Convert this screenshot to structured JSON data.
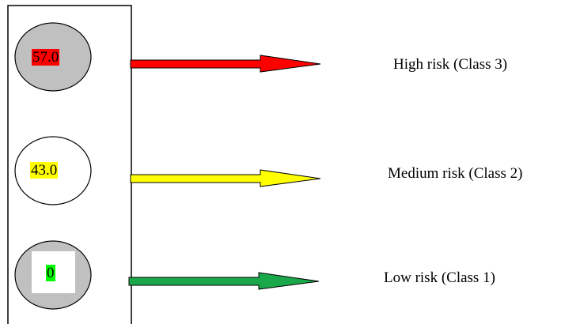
{
  "levels": [
    {
      "value": "57.0",
      "label": "High risk (Class 3)",
      "circle_fill": "#c0c0c0",
      "value_bg": "#ff0000",
      "arrow_color": "#ff0000"
    },
    {
      "value": "43.0",
      "label": "Medium risk (Class 2)",
      "circle_fill": "#ffffff",
      "value_bg": "#ffff00",
      "arrow_color": "#ffff00"
    },
    {
      "value": "0",
      "label": "Low risk (Class 1)",
      "circle_fill": "#c0c0c0",
      "value_bg": "#00ff00",
      "arrow_color": "#1aa84a"
    }
  ]
}
